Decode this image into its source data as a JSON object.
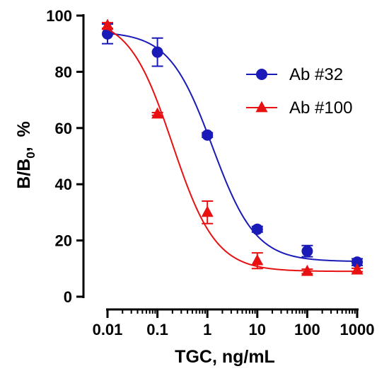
{
  "chart_data": {
    "type": "scatter",
    "xscale": "log",
    "xlim": [
      0.01,
      1000
    ],
    "ylim": [
      0,
      100
    ],
    "xticks": [
      0.01,
      0.1,
      1,
      10,
      100,
      1000
    ],
    "xtick_labels": [
      "0.01",
      "0.1",
      "1",
      "10",
      "100",
      "1000"
    ],
    "yticks": [
      0,
      20,
      40,
      60,
      80,
      100
    ],
    "ytick_labels": [
      "0",
      "20",
      "40",
      "60",
      "80",
      "100"
    ],
    "xlabel": "TGC, ng/mL",
    "ylabel": {
      "main": "B/B",
      "sub": "0",
      "rest": ",  %"
    },
    "legend_position": "top-right",
    "grid": false,
    "series": [
      {
        "name": "Ab #32",
        "color": "#1a1ab8",
        "marker": "circle",
        "x": [
          0.01,
          0.1,
          1,
          10,
          100,
          1000
        ],
        "y": [
          93.5,
          87,
          57.5,
          24,
          16.2,
          12.3
        ],
        "yerr": [
          3.5,
          5,
          0.8,
          1.0,
          2.0,
          1.2
        ],
        "fit": {
          "top": 94.3,
          "bottom": 12.5,
          "ec50": 1.26,
          "hill": 1.0
        }
      },
      {
        "name": "Ab #100",
        "color": "#e81010",
        "marker": "triangle",
        "x": [
          0.01,
          0.1,
          1,
          10,
          100,
          1000
        ],
        "y": [
          96.5,
          65,
          30,
          12.8,
          9,
          9.5
        ],
        "yerr": [
          1.0,
          0.5,
          4.0,
          2.8,
          0.8,
          0.6
        ],
        "fit": {
          "top": 99.5,
          "bottom": 9.0,
          "ec50": 0.2,
          "hill": 1.0
        }
      }
    ]
  }
}
